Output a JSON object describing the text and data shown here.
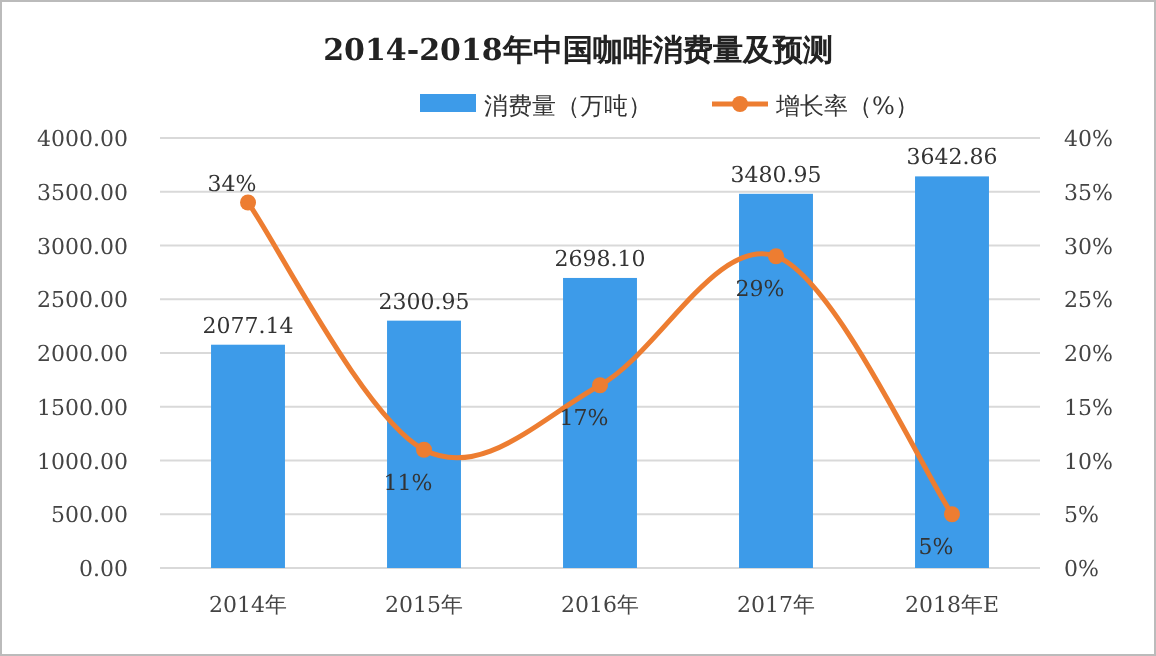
{
  "chart_data": {
    "type": "bar",
    "title": "2014-2018年中国咖啡消费量及预测",
    "categories": [
      "2014年",
      "2015年",
      "2016年",
      "2017年",
      "2018年E"
    ],
    "series": [
      {
        "name": "消费量（万吨）",
        "color": "#3d9be9",
        "values": [
          2077.14,
          2300.95,
          2698.1,
          3480.95,
          3642.86
        ],
        "value_labels": [
          "2077.14",
          "2300.95",
          "2698.10",
          "3480.95",
          "3642.86"
        ]
      },
      {
        "name": "增长率（%）",
        "type": "line",
        "axis": "y2",
        "color": "#ed7d31",
        "marker": "circle",
        "values": [
          34,
          11,
          17,
          29,
          5
        ],
        "value_labels": [
          "34%",
          "11%",
          "17%",
          "29%",
          "5%"
        ]
      }
    ],
    "ylim": [
      0,
      4000
    ],
    "yticks": [
      {
        "value": 0,
        "label": "0.00"
      },
      {
        "value": 500,
        "label": "500.00"
      },
      {
        "value": 1000,
        "label": "1000.00"
      },
      {
        "value": 1500,
        "label": "1500.00"
      },
      {
        "value": 2000,
        "label": "2000.00"
      },
      {
        "value": 2500,
        "label": "2500.00"
      },
      {
        "value": 3000,
        "label": "3000.00"
      },
      {
        "value": 3500,
        "label": "3500.00"
      },
      {
        "value": 4000,
        "label": "4000.00"
      }
    ],
    "y2lim": [
      0,
      40
    ],
    "y2ticks": [
      {
        "value": 0,
        "label": "0%"
      },
      {
        "value": 5,
        "label": "5%"
      },
      {
        "value": 10,
        "label": "10%"
      },
      {
        "value": 15,
        "label": "15%"
      },
      {
        "value": 20,
        "label": "20%"
      },
      {
        "value": 25,
        "label": "25%"
      },
      {
        "value": 30,
        "label": "30%"
      },
      {
        "value": 35,
        "label": "35%"
      },
      {
        "value": 40,
        "label": "40%"
      }
    ],
    "grid": "y",
    "legend": "top"
  }
}
